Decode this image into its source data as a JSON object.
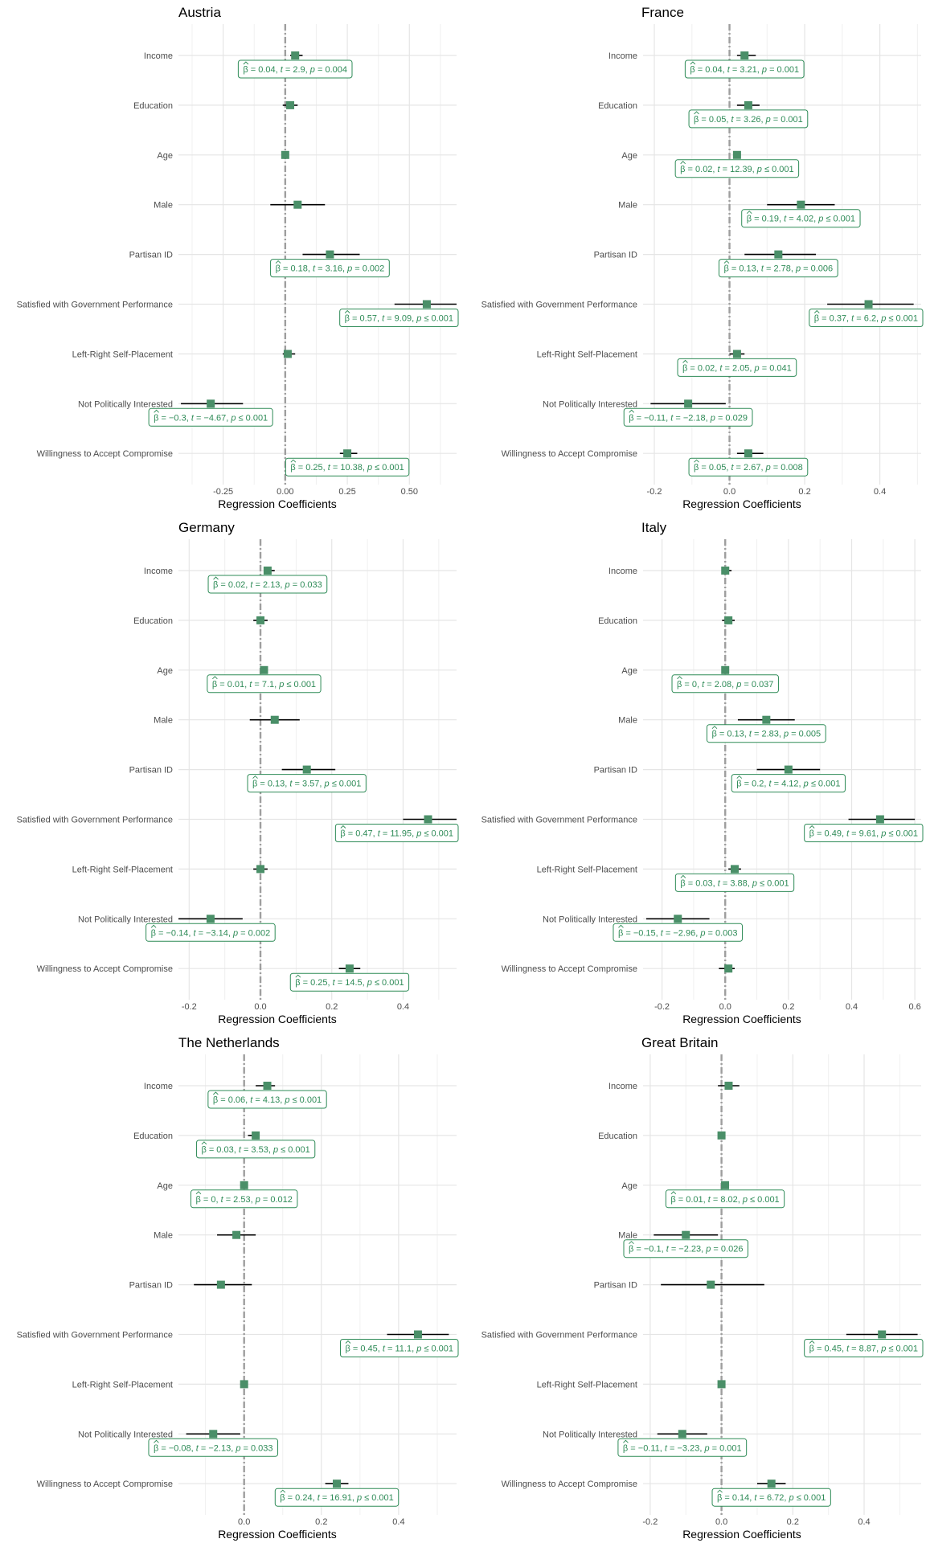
{
  "chart_data": [
    {
      "type": "coefficient-plot",
      "title": "Austria",
      "xlabel": "Regression Coefficients",
      "categories": [
        "Income",
        "Education",
        "Age",
        "Male",
        "Partisan ID",
        "Satisfied with Government Performance",
        "Left-Right Self-Placement",
        "Not Politically Interested",
        "Willingness to Accept Compromise"
      ],
      "xlim": [
        -0.43,
        0.69
      ],
      "xticks": [
        -0.25,
        0,
        0.25,
        0.5
      ],
      "xtick_labels": [
        "-0.25",
        "0.00",
        "0.25",
        "0.50"
      ],
      "estimates": [
        0.04,
        0.02,
        0.0,
        0.05,
        0.18,
        0.57,
        0.01,
        -0.3,
        0.25
      ],
      "ci_low": [
        0.02,
        -0.01,
        -0.01,
        -0.06,
        0.07,
        0.44,
        -0.01,
        -0.42,
        0.22
      ],
      "ci_high": [
        0.07,
        0.05,
        0.01,
        0.16,
        0.3,
        0.69,
        0.04,
        -0.17,
        0.29
      ],
      "labels": [
        {
          "row": 0,
          "x": 0.04,
          "beta": "0.04",
          "t": "2.9",
          "p": "0.004",
          "p_op": "="
        },
        {
          "row": 4,
          "x": 0.18,
          "beta": "0.18",
          "t": "3.16",
          "p": "0.002",
          "p_op": "="
        },
        {
          "row": 5,
          "x": 0.57,
          "beta": "0.57",
          "t": "9.09",
          "p": "0.001",
          "p_op": "≤"
        },
        {
          "row": 7,
          "x": -0.3,
          "beta": "−0.3",
          "t": "−4.67",
          "p": "0.001",
          "p_op": "≤"
        },
        {
          "row": 8,
          "x": 0.25,
          "beta": "0.25",
          "t": "10.38",
          "p": "0.001",
          "p_op": "≤"
        }
      ]
    },
    {
      "type": "coefficient-plot",
      "title": "France",
      "xlabel": "Regression Coefficients",
      "categories": [
        "Income",
        "Education",
        "Age",
        "Male",
        "Partisan ID",
        "Satisfied with Government Performance",
        "Left-Right Self-Placement",
        "Not Politically Interested",
        "Willingness to Accept Compromise"
      ],
      "xlim": [
        -0.23,
        0.51
      ],
      "xticks": [
        -0.2,
        0,
        0.2,
        0.4
      ],
      "xtick_labels": [
        "-0.2",
        "0.0",
        "0.2",
        "0.4"
      ],
      "estimates": [
        0.04,
        0.05,
        0.02,
        0.19,
        0.13,
        0.37,
        0.02,
        -0.11,
        0.05
      ],
      "ci_low": [
        0.02,
        0.02,
        0.01,
        0.1,
        0.04,
        0.26,
        0.0,
        -0.21,
        0.02
      ],
      "ci_high": [
        0.07,
        0.08,
        0.03,
        0.28,
        0.23,
        0.49,
        0.04,
        -0.01,
        0.09
      ],
      "labels": [
        {
          "row": 0,
          "x": 0.04,
          "beta": "0.04",
          "t": "3.21",
          "p": "0.001",
          "p_op": "="
        },
        {
          "row": 1,
          "x": 0.05,
          "beta": "0.05",
          "t": "3.26",
          "p": "0.001",
          "p_op": "="
        },
        {
          "row": 2,
          "x": 0.02,
          "beta": "0.02",
          "t": "12.39",
          "p": "0.001",
          "p_op": "≤"
        },
        {
          "row": 3,
          "x": 0.19,
          "beta": "0.19",
          "t": "4.02",
          "p": "0.001",
          "p_op": "≤"
        },
        {
          "row": 4,
          "x": 0.13,
          "beta": "0.13",
          "t": "2.78",
          "p": "0.006",
          "p_op": "="
        },
        {
          "row": 5,
          "x": 0.37,
          "beta": "0.37",
          "t": "6.2",
          "p": "0.001",
          "p_op": "≤"
        },
        {
          "row": 6,
          "x": 0.02,
          "beta": "0.02",
          "t": "2.05",
          "p": "0.041",
          "p_op": "="
        },
        {
          "row": 7,
          "x": -0.11,
          "beta": "−0.11",
          "t": "−2.18",
          "p": "0.029",
          "p_op": "="
        },
        {
          "row": 8,
          "x": 0.05,
          "beta": "0.05",
          "t": "2.67",
          "p": "0.008",
          "p_op": "="
        }
      ]
    },
    {
      "type": "coefficient-plot",
      "title": "Germany",
      "xlabel": "Regression Coefficients",
      "categories": [
        "Income",
        "Education",
        "Age",
        "Male",
        "Partisan ID",
        "Satisfied with Government Performance",
        "Left-Right Self-Placement",
        "Not Politically Interested",
        "Willingness to Accept Compromise"
      ],
      "xlim": [
        -0.23,
        0.55
      ],
      "xticks": [
        -0.2,
        0,
        0.2,
        0.4
      ],
      "xtick_labels": [
        "-0.2",
        "0.0",
        "0.2",
        "0.4"
      ],
      "estimates": [
        0.02,
        0.0,
        0.01,
        0.04,
        0.13,
        0.47,
        0.0,
        -0.14,
        0.25
      ],
      "ci_low": [
        0.01,
        -0.02,
        0.0,
        -0.03,
        0.06,
        0.4,
        -0.02,
        -0.23,
        0.22
      ],
      "ci_high": [
        0.04,
        0.02,
        0.02,
        0.11,
        0.21,
        0.55,
        0.02,
        -0.05,
        0.28
      ],
      "labels": [
        {
          "row": 0,
          "x": 0.02,
          "beta": "0.02",
          "t": "2.13",
          "p": "0.033",
          "p_op": "="
        },
        {
          "row": 2,
          "x": 0.01,
          "beta": "0.01",
          "t": "7.1",
          "p": "0.001",
          "p_op": "≤"
        },
        {
          "row": 4,
          "x": 0.13,
          "beta": "0.13",
          "t": "3.57",
          "p": "0.001",
          "p_op": "≤"
        },
        {
          "row": 5,
          "x": 0.47,
          "beta": "0.47",
          "t": "11.95",
          "p": "0.001",
          "p_op": "≤"
        },
        {
          "row": 7,
          "x": -0.14,
          "beta": "−0.14",
          "t": "−3.14",
          "p": "0.002",
          "p_op": "="
        },
        {
          "row": 8,
          "x": 0.25,
          "beta": "0.25",
          "t": "14.5",
          "p": "0.001",
          "p_op": "≤"
        }
      ]
    },
    {
      "type": "coefficient-plot",
      "title": "Italy",
      "xlabel": "Regression Coefficients",
      "categories": [
        "Income",
        "Education",
        "Age",
        "Male",
        "Partisan ID",
        "Satisfied with Government Performance",
        "Left-Right Self-Placement",
        "Not Politically Interested",
        "Willingness to Accept Compromise"
      ],
      "xlim": [
        -0.26,
        0.62
      ],
      "xticks": [
        -0.2,
        0,
        0.2,
        0.4,
        0.6
      ],
      "xtick_labels": [
        "-0.2",
        "0.0",
        "0.2",
        "0.4",
        "0.6"
      ],
      "estimates": [
        0.0,
        0.01,
        0.0,
        0.13,
        0.2,
        0.49,
        0.03,
        -0.15,
        0.01
      ],
      "ci_low": [
        -0.01,
        -0.01,
        -0.01,
        0.04,
        0.1,
        0.39,
        0.01,
        -0.25,
        -0.02
      ],
      "ci_high": [
        0.02,
        0.03,
        0.01,
        0.22,
        0.3,
        0.6,
        0.05,
        -0.05,
        0.03
      ],
      "labels": [
        {
          "row": 2,
          "x": 0.0,
          "beta": "0",
          "t": "2.08",
          "p": "0.037",
          "p_op": "="
        },
        {
          "row": 3,
          "x": 0.13,
          "beta": "0.13",
          "t": "2.83",
          "p": "0.005",
          "p_op": "="
        },
        {
          "row": 4,
          "x": 0.2,
          "beta": "0.2",
          "t": "4.12",
          "p": "0.001",
          "p_op": "≤"
        },
        {
          "row": 5,
          "x": 0.49,
          "beta": "0.49",
          "t": "9.61",
          "p": "0.001",
          "p_op": "≤"
        },
        {
          "row": 6,
          "x": 0.03,
          "beta": "0.03",
          "t": "3.88",
          "p": "0.001",
          "p_op": "≤"
        },
        {
          "row": 7,
          "x": -0.15,
          "beta": "−0.15",
          "t": "−2.96",
          "p": "0.003",
          "p_op": "="
        }
      ]
    },
    {
      "type": "coefficient-plot",
      "title": "The Netherlands",
      "xlabel": "Regression Coefficients",
      "categories": [
        "Income",
        "Education",
        "Age",
        "Male",
        "Partisan ID",
        "Satisfied with Government Performance",
        "Left-Right Self-Placement",
        "Not Politically Interested",
        "Willingness to Accept Compromise"
      ],
      "xlim": [
        -0.17,
        0.55
      ],
      "xticks": [
        0,
        0.2,
        0.4
      ],
      "xtick_labels": [
        "0.0",
        "0.2",
        "0.4"
      ],
      "estimates": [
        0.06,
        0.03,
        0.0,
        -0.02,
        -0.06,
        0.45,
        0.0,
        -0.08,
        0.24
      ],
      "ci_low": [
        0.03,
        0.01,
        -0.01,
        -0.07,
        -0.13,
        0.37,
        -0.01,
        -0.15,
        0.21
      ],
      "ci_high": [
        0.08,
        0.04,
        0.01,
        0.03,
        0.02,
        0.53,
        0.01,
        -0.01,
        0.27
      ],
      "labels": [
        {
          "row": 0,
          "x": 0.06,
          "beta": "0.06",
          "t": "4.13",
          "p": "0.001",
          "p_op": "≤"
        },
        {
          "row": 1,
          "x": 0.03,
          "beta": "0.03",
          "t": "3.53",
          "p": "0.001",
          "p_op": "≤"
        },
        {
          "row": 2,
          "x": 0.0,
          "beta": "0",
          "t": "2.53",
          "p": "0.012",
          "p_op": "="
        },
        {
          "row": 5,
          "x": 0.45,
          "beta": "0.45",
          "t": "11.1",
          "p": "0.001",
          "p_op": "≤"
        },
        {
          "row": 7,
          "x": -0.08,
          "beta": "−0.08",
          "t": "−2.13",
          "p": "0.033",
          "p_op": "="
        },
        {
          "row": 8,
          "x": 0.24,
          "beta": "0.24",
          "t": "16.91",
          "p": "0.001",
          "p_op": "≤"
        }
      ]
    },
    {
      "type": "coefficient-plot",
      "title": "Great Britain",
      "xlabel": "Regression Coefficients",
      "categories": [
        "Income",
        "Education",
        "Age",
        "Male",
        "Partisan ID",
        "Satisfied with Government Performance",
        "Left-Right Self-Placement",
        "Not Politically Interested",
        "Willingness to Accept Compromise"
      ],
      "xlim": [
        -0.22,
        0.56
      ],
      "xticks": [
        -0.2,
        0,
        0.2,
        0.4
      ],
      "xtick_labels": [
        "-0.2",
        "0.0",
        "0.2",
        "0.4"
      ],
      "estimates": [
        0.02,
        0.0,
        0.01,
        -0.1,
        -0.03,
        0.45,
        0.0,
        -0.11,
        0.14
      ],
      "ci_low": [
        -0.01,
        -0.01,
        0.0,
        -0.19,
        -0.17,
        0.35,
        -0.01,
        -0.18,
        0.1
      ],
      "ci_high": [
        0.05,
        0.01,
        0.02,
        -0.01,
        0.12,
        0.55,
        0.01,
        -0.04,
        0.18
      ],
      "labels": [
        {
          "row": 2,
          "x": 0.01,
          "beta": "0.01",
          "t": "8.02",
          "p": "0.001",
          "p_op": "≤"
        },
        {
          "row": 3,
          "x": -0.1,
          "beta": "−0.1",
          "t": "−2.23",
          "p": "0.026",
          "p_op": "="
        },
        {
          "row": 5,
          "x": 0.45,
          "beta": "0.45",
          "t": "8.87",
          "p": "0.001",
          "p_op": "≤"
        },
        {
          "row": 7,
          "x": -0.11,
          "beta": "−0.11",
          "t": "−3.23",
          "p": "0.001",
          "p_op": "="
        },
        {
          "row": 8,
          "x": 0.14,
          "beta": "0.14",
          "t": "6.72",
          "p": "0.001",
          "p_op": "≤"
        }
      ]
    }
  ],
  "colors": {
    "point": "#4a8f68",
    "label_text": "#2e8b57",
    "label_border": "#2e8b57",
    "ci_line": "#000000",
    "zero_line": "#9e9e9e",
    "grid": "#e5e5e5"
  }
}
